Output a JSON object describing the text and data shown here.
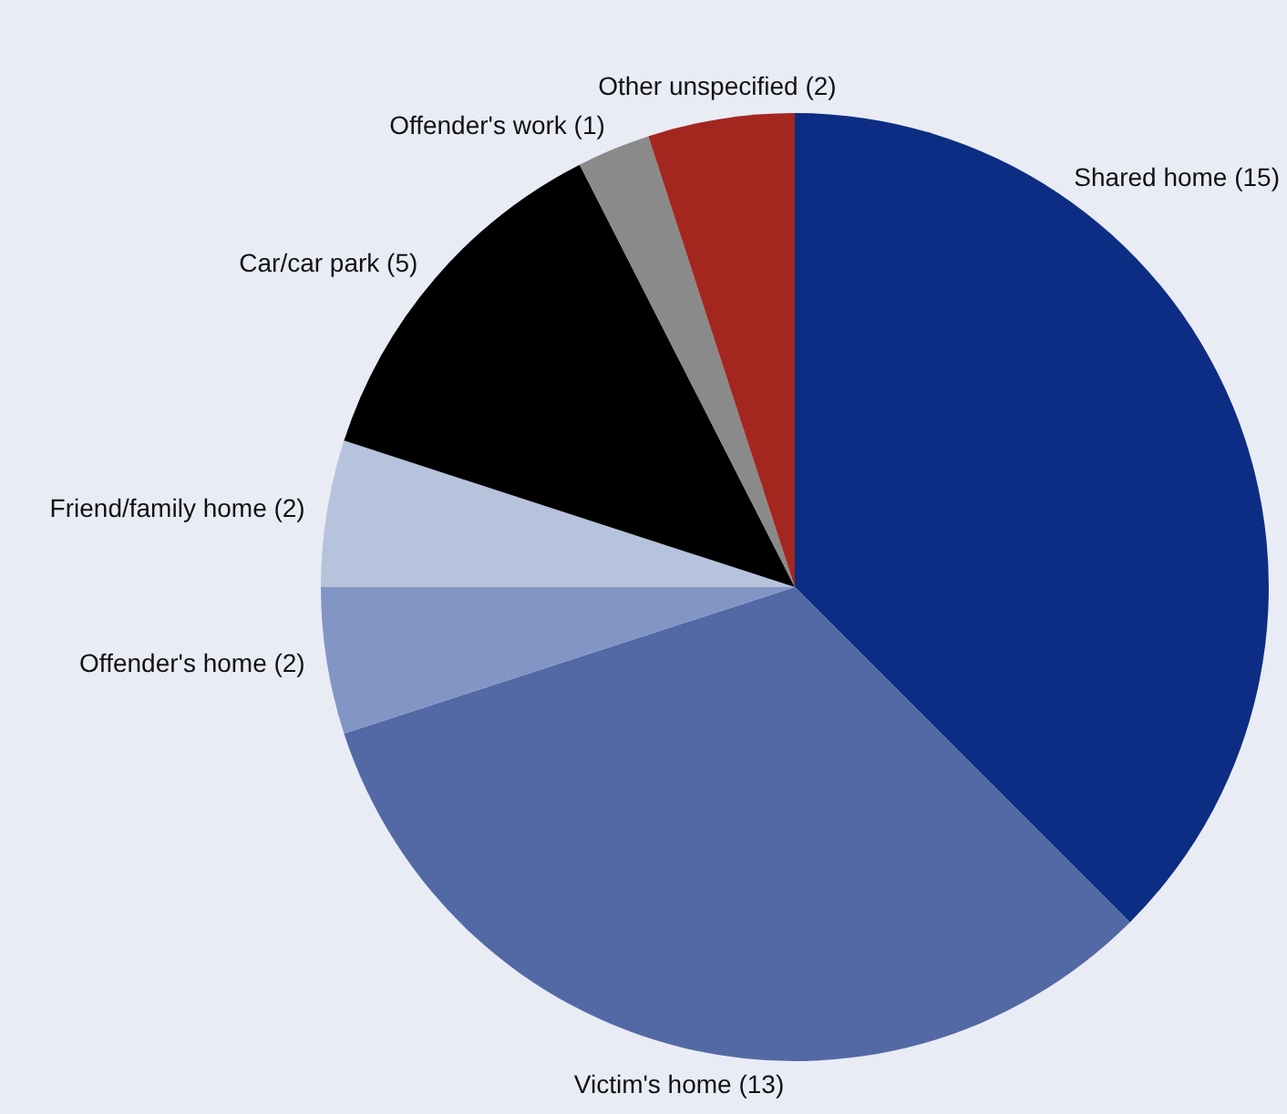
{
  "chart_data": {
    "type": "pie",
    "categories": [
      "Shared home (15)",
      "Victim's home (13)",
      "Offender's home (2)",
      "Friend/family home (2)",
      "Car/car park (5)",
      "Offender's work (1)",
      "Other unspecified (2)"
    ],
    "values": [
      15,
      13,
      2,
      2,
      5,
      1,
      2
    ],
    "colors": [
      "#0c2d83",
      "#5369a5",
      "#8395c5",
      "#b7c3dc",
      "#000000",
      "#8a8a8a",
      "#a3271f"
    ]
  }
}
